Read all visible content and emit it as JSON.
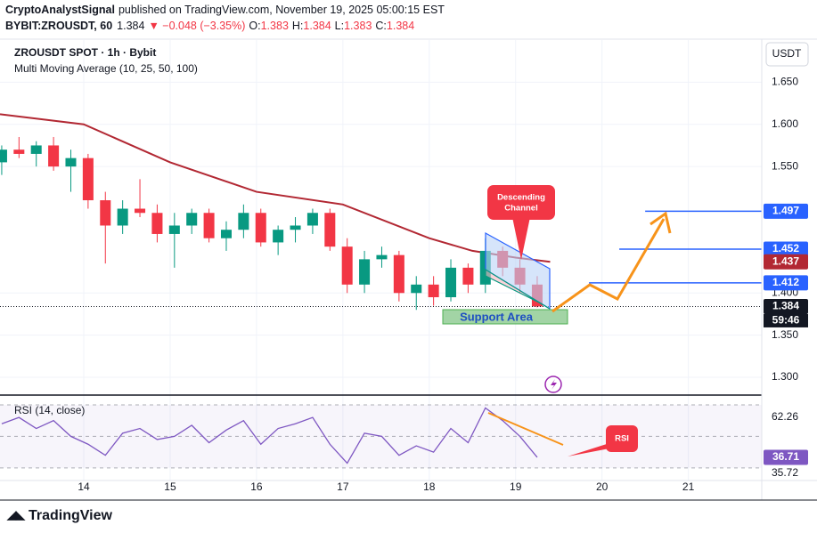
{
  "header": {
    "author": "CryptoAnalystSignal",
    "published": "published on TradingView.com, November 19, 2025 05:00:15 EST",
    "symbol": "BYBIT:ZROUSDT, 60",
    "last": "1.384",
    "change": "▼ −0.048 (−3.35%)",
    "ohlc": [
      [
        "O:",
        "1.383"
      ],
      [
        "H:",
        "1.384"
      ],
      [
        "L:",
        "1.383"
      ],
      [
        "C:",
        "1.384"
      ]
    ]
  },
  "currency": "USDT",
  "countdown": "59:46",
  "footer": "TradingView",
  "annotations": {
    "channel": [
      "Descending",
      "Channel"
    ],
    "support": "Support Area",
    "rsi": "RSI"
  },
  "chart_data": {
    "type": "candlestick",
    "title": "ZROUSDT SPOT · 1h · Bybit",
    "indicator": "Multi Moving Average (10, 25, 50, 100)",
    "up_color": "#089981",
    "down_color": "#f23645",
    "grid": true,
    "x": [
      13.05,
      13.25,
      13.45,
      13.65,
      13.85,
      14.05,
      14.25,
      14.45,
      14.65,
      14.85,
      15.05,
      15.25,
      15.45,
      15.65,
      15.85,
      16.05,
      16.25,
      16.45,
      16.65,
      16.85,
      17.05,
      17.25,
      17.45,
      17.65,
      17.85,
      18.05,
      18.25,
      18.45,
      18.65,
      18.85,
      19.05,
      19.25
    ],
    "open": [
      1.555,
      1.57,
      1.565,
      1.575,
      1.55,
      1.56,
      1.51,
      1.48,
      1.5,
      1.495,
      1.47,
      1.48,
      1.495,
      1.465,
      1.475,
      1.495,
      1.46,
      1.475,
      1.48,
      1.495,
      1.455,
      1.41,
      1.44,
      1.445,
      1.4,
      1.41,
      1.395,
      1.43,
      1.41,
      1.45,
      1.43,
      1.41
    ],
    "high": [
      1.575,
      1.585,
      1.58,
      1.585,
      1.57,
      1.565,
      1.52,
      1.51,
      1.535,
      1.505,
      1.495,
      1.5,
      1.5,
      1.485,
      1.505,
      1.5,
      1.48,
      1.49,
      1.5,
      1.5,
      1.465,
      1.45,
      1.455,
      1.45,
      1.42,
      1.42,
      1.44,
      1.435,
      1.465,
      1.455,
      1.44,
      1.42
    ],
    "low": [
      1.54,
      1.56,
      1.55,
      1.545,
      1.52,
      1.5,
      1.435,
      1.47,
      1.49,
      1.46,
      1.43,
      1.47,
      1.46,
      1.45,
      1.465,
      1.455,
      1.445,
      1.46,
      1.47,
      1.45,
      1.4,
      1.4,
      1.43,
      1.39,
      1.38,
      1.385,
      1.39,
      1.4,
      1.4,
      1.42,
      1.4,
      1.383
    ],
    "close": [
      1.57,
      1.565,
      1.575,
      1.55,
      1.56,
      1.51,
      1.48,
      1.5,
      1.495,
      1.47,
      1.48,
      1.495,
      1.465,
      1.475,
      1.495,
      1.46,
      1.475,
      1.48,
      1.495,
      1.455,
      1.41,
      1.44,
      1.445,
      1.4,
      1.41,
      1.395,
      1.43,
      1.41,
      1.45,
      1.43,
      1.41,
      1.384
    ],
    "ma": {
      "color": "#b22833",
      "x": [
        13.03,
        14,
        15,
        16,
        17,
        18,
        18.5,
        19,
        19.4
      ],
      "values": [
        1.612,
        1.6,
        1.555,
        1.52,
        1.505,
        1.465,
        1.45,
        1.442,
        1.437
      ]
    },
    "levels": [
      1.497,
      1.452,
      1.412
    ],
    "level_color": "#2962ff",
    "xlim": [
      13.03,
      21.85
    ],
    "xticks": [
      14,
      15,
      16,
      17,
      18,
      19,
      20,
      21
    ],
    "ylim": [
      1.28,
      1.7
    ],
    "yticks": [
      {
        "value": 1.65,
        "label": "1.650"
      },
      {
        "value": 1.6,
        "label": "1.600"
      },
      {
        "value": 1.55,
        "label": "1.550"
      },
      {
        "value": 1.4,
        "label": "1.400"
      },
      {
        "value": 1.35,
        "label": "1.350"
      },
      {
        "value": 1.3,
        "label": "1.300"
      }
    ],
    "rsi": {
      "title": "RSI (14, close)",
      "color": "#7e57c2",
      "ylim": [
        22,
        74.5
      ],
      "bands": [
        70,
        50,
        30
      ],
      "top_label": 62.26,
      "bottom_label": 35.72,
      "values": [
        58,
        62,
        55,
        60,
        50,
        45,
        38,
        52,
        55,
        48,
        50,
        57,
        46,
        54,
        60,
        45,
        55,
        58,
        62,
        45,
        33,
        52,
        50,
        38,
        44,
        40,
        55,
        46,
        68,
        60,
        50,
        36.71
      ]
    }
  }
}
